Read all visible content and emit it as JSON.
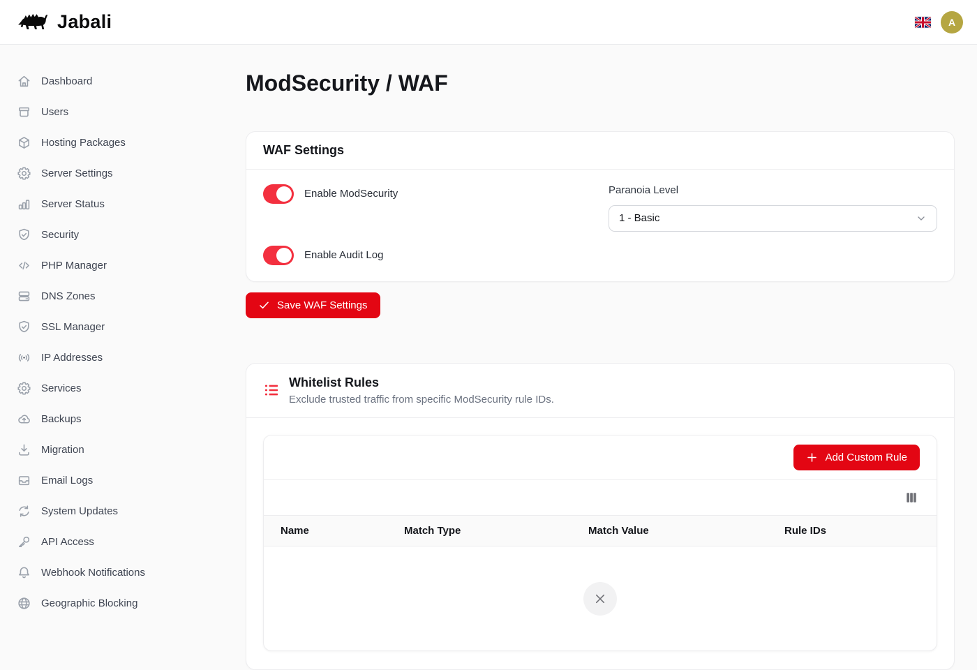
{
  "header": {
    "brand": "Jabali",
    "language_flag": "uk-flag",
    "avatar_initial": "A"
  },
  "sidebar": {
    "items": [
      {
        "label": "Dashboard",
        "icon": "home"
      },
      {
        "label": "Users",
        "icon": "archive"
      },
      {
        "label": "Hosting Packages",
        "icon": "package"
      },
      {
        "label": "Server Settings",
        "icon": "gear"
      },
      {
        "label": "Server Status",
        "icon": "bar-chart"
      },
      {
        "label": "Security",
        "icon": "shield-check"
      },
      {
        "label": "PHP Manager",
        "icon": "code"
      },
      {
        "label": "DNS Zones",
        "icon": "server-stack"
      },
      {
        "label": "SSL Manager",
        "icon": "shield-check"
      },
      {
        "label": "IP Addresses",
        "icon": "signal"
      },
      {
        "label": "Services",
        "icon": "gear"
      },
      {
        "label": "Backups",
        "icon": "cloud-upload"
      },
      {
        "label": "Migration",
        "icon": "download"
      },
      {
        "label": "Email Logs",
        "icon": "inbox"
      },
      {
        "label": "System Updates",
        "icon": "refresh"
      },
      {
        "label": "API Access",
        "icon": "key"
      },
      {
        "label": "Webhook Notifications",
        "icon": "bell"
      },
      {
        "label": "Geographic Blocking",
        "icon": "globe"
      }
    ]
  },
  "page": {
    "title": "ModSecurity / WAF"
  },
  "waf_settings": {
    "title": "WAF Settings",
    "toggles": [
      {
        "label": "Enable ModSecurity",
        "on": true
      },
      {
        "label": "Enable Audit Log",
        "on": true
      }
    ],
    "paranoia": {
      "label": "Paranoia Level",
      "selected": "1 - Basic"
    },
    "save_label": "Save WAF Settings"
  },
  "whitelist": {
    "title": "Whitelist Rules",
    "subtitle": "Exclude trusted traffic from specific ModSecurity rule IDs.",
    "add_button": "Add Custom Rule",
    "table": {
      "columns": [
        "Name",
        "Match Type",
        "Match Value",
        "Rule IDs"
      ]
    }
  },
  "colors": {
    "accent_red": "#e30613",
    "toggle_red": "#f3303f",
    "avatar_gold": "#b5a642"
  }
}
